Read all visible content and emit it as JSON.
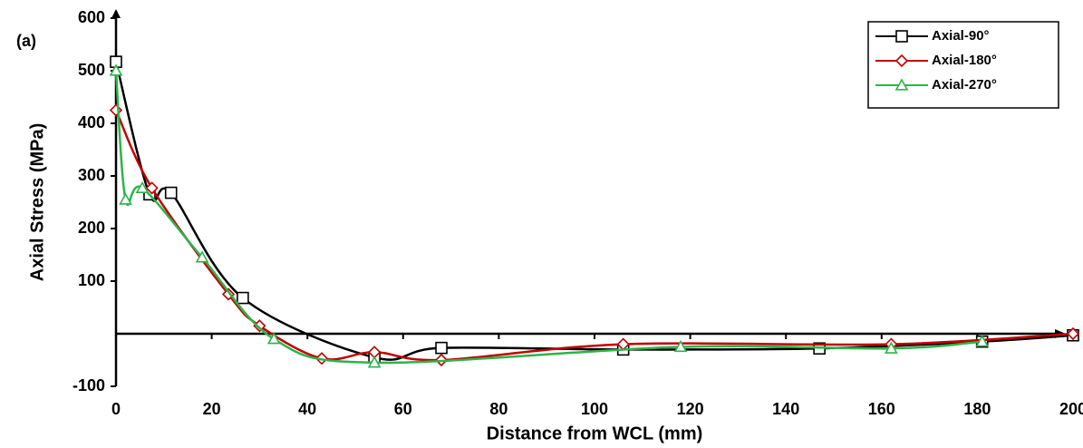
{
  "chart_data": {
    "type": "line",
    "panel_label": "(a)",
    "x_label": "Distance from WCL (mm)",
    "y_label": "Axial Stress (MPa)",
    "xlim": [
      0,
      200
    ],
    "ylim": [
      -100,
      600
    ],
    "xticks": [
      0,
      20,
      40,
      60,
      80,
      100,
      120,
      140,
      160,
      180,
      200
    ],
    "yticks": [
      -100,
      100,
      200,
      300,
      400,
      500,
      600
    ],
    "legend": "top-right",
    "series": [
      {
        "name": "Axial-90°",
        "color": "#000000",
        "marker": "square",
        "x": [
          0,
          7,
          11.5,
          26.5,
          54,
          68,
          106,
          147,
          181,
          200
        ],
        "values": [
          517,
          265,
          268,
          68,
          -45,
          -27,
          -30,
          -28,
          -15,
          -3
        ]
      },
      {
        "name": "Axial-180°",
        "color": "#c00000",
        "marker": "diamond",
        "x": [
          0,
          7.5,
          23.5,
          30,
          43,
          54,
          68,
          106,
          162,
          200
        ],
        "values": [
          425,
          277,
          75,
          15,
          -47,
          -35,
          -50,
          -20,
          -20,
          0
        ]
      },
      {
        "name": "Axial-270°",
        "color": "#2db34a",
        "marker": "triangle",
        "x": [
          0,
          2,
          5.5,
          18,
          33,
          54,
          118,
          162,
          181
        ],
        "values": [
          500,
          255,
          277,
          145,
          -10,
          -55,
          -25,
          -28,
          -15
        ]
      }
    ]
  }
}
